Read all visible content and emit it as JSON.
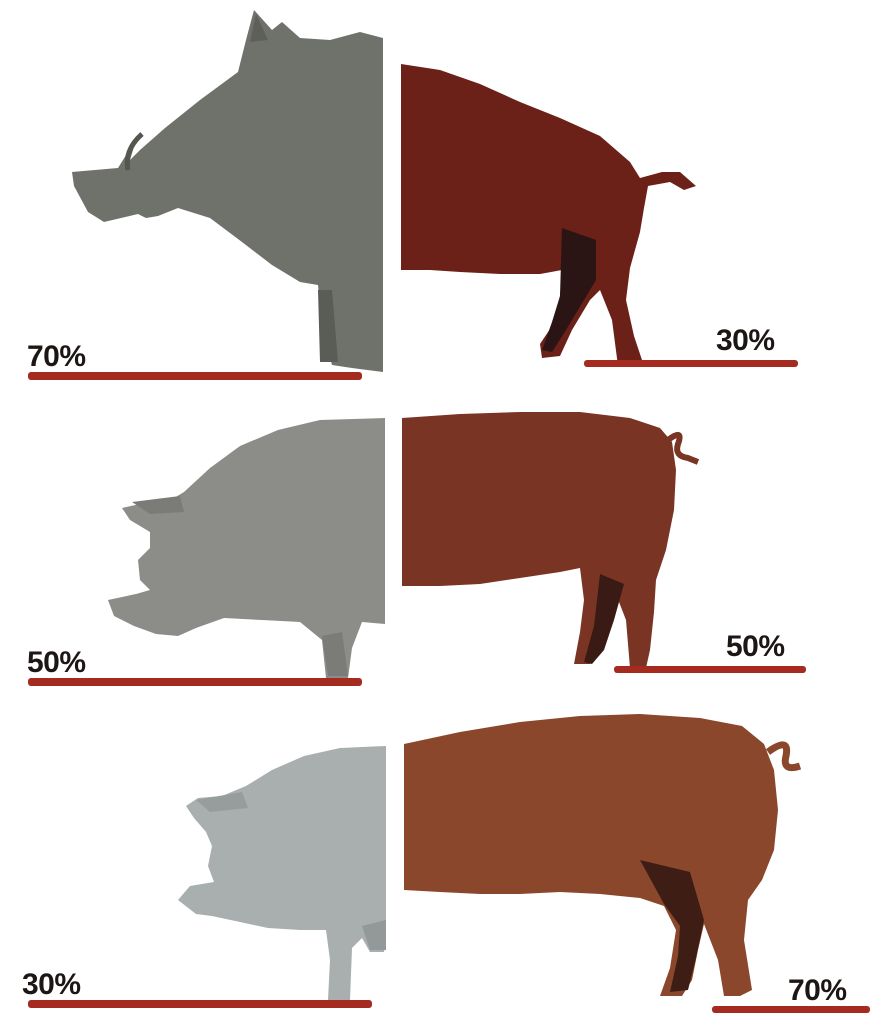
{
  "colors": {
    "wild_gray": "#6f716b",
    "wild_brown": "#6b2018",
    "mid_gray": "#8c8d89",
    "mid_brown": "#7a3424",
    "modern_gray": "#a9aeaf",
    "modern_brown": "#8a472c",
    "bar_red": "#a52a20",
    "label_text": "#1c1714"
  },
  "rows": [
    {
      "id": "wild-boar",
      "left_label": "70%",
      "right_label": "30%",
      "front_share": 70,
      "rear_share": 30
    },
    {
      "id": "intermediate-pig",
      "left_label": "50%",
      "right_label": "50%",
      "front_share": 50,
      "rear_share": 50
    },
    {
      "id": "modern-pig",
      "left_label": "30%",
      "right_label": "70%",
      "front_share": 30,
      "rear_share": 70
    }
  ]
}
